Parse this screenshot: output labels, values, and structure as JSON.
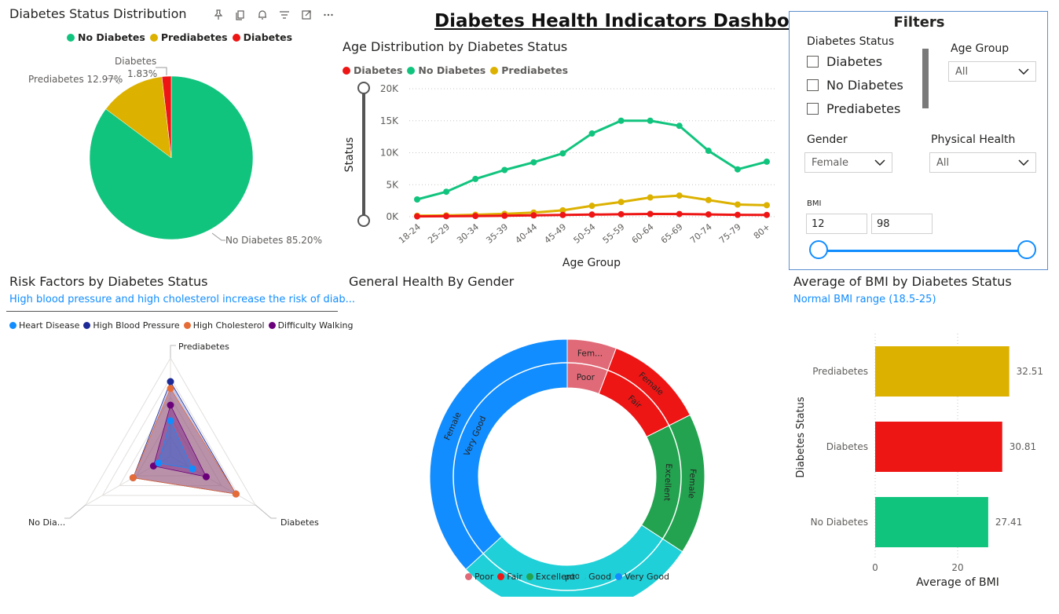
{
  "dashboard": {
    "title": "Diabetes Health Indicators Dashboard"
  },
  "colors": {
    "no_diabetes": "#11c47e",
    "prediabetes": "#dcb100",
    "diabetes": "#ee1515",
    "accent": "#118dff"
  },
  "visual_toolbar": {
    "icons": [
      "pin-icon",
      "copy-icon",
      "bell-icon",
      "filter-icon",
      "focus-mode-icon",
      "more-options-icon"
    ]
  },
  "pie_chart": {
    "title": "Diabetes Status Distribution",
    "legend": [
      "No Diabetes",
      "Prediabetes",
      "Diabetes"
    ],
    "labels": {
      "no_diabetes": "No Diabetes 85.20%",
      "prediabetes": "Prediabetes 12.97%",
      "diabetes_name": "Diabetes",
      "diabetes_pct": "1.83%"
    }
  },
  "line_chart": {
    "title": "Age Distribution by Diabetes Status",
    "legend": [
      "Diabetes",
      "No Diabetes",
      "Prediabetes"
    ],
    "ylabel": "Status",
    "xlabel": "Age Group"
  },
  "radar_chart": {
    "title": "Risk Factors by Diabetes Status",
    "subtitle": "High blood pressure and high cholesterol increase the risk of diab...",
    "legend": [
      "Heart Disease",
      "High Blood Pressure",
      "High Cholesterol",
      "Difficulty Walking"
    ],
    "axes": [
      "Prediabetes",
      "Diabetes",
      "No Dia..."
    ]
  },
  "donut_chart": {
    "title": "General Health By Gender",
    "legend": [
      "Poor",
      "Fair",
      "Excellent",
      "Good",
      "Very Good"
    ]
  },
  "bmi_chart": {
    "title": "Average of BMI by Diabetes Status",
    "subtitle": "Normal BMI range (18.5-25)",
    "ylabel": "Diabetes Status",
    "xlabel": "Average of BMI"
  },
  "filters": {
    "title": "Filters",
    "diabetes_status": {
      "label": "Diabetes Status",
      "options": [
        "Diabetes",
        "No Diabetes",
        "Prediabetes"
      ]
    },
    "age_group": {
      "label": "Age Group",
      "value": "All"
    },
    "gender": {
      "label": "Gender",
      "value": "Female"
    },
    "physical_health": {
      "label": "Physical Health",
      "value": "All"
    },
    "bmi": {
      "label": "BMI",
      "min": "12",
      "max": "98"
    }
  },
  "chart_data": [
    {
      "type": "pie",
      "title": "Diabetes Status Distribution",
      "categories": [
        "No Diabetes",
        "Prediabetes",
        "Diabetes"
      ],
      "values": [
        85.2,
        12.97,
        1.83
      ],
      "legend_position": "top"
    },
    {
      "type": "line",
      "title": "Age Distribution by Diabetes Status",
      "xlabel": "Age Group",
      "ylabel": "Status",
      "categories": [
        "18-24",
        "25-29",
        "30-34",
        "35-39",
        "40-44",
        "45-49",
        "50-54",
        "55-59",
        "60-64",
        "65-69",
        "70-74",
        "75-79",
        "80+"
      ],
      "yticks": [
        "0K",
        "5K",
        "10K",
        "15K",
        "20K"
      ],
      "ylim": [
        0,
        20000
      ],
      "series": [
        {
          "name": "Diabetes",
          "values": [
            50,
            80,
            110,
            150,
            210,
            270,
            330,
            390,
            430,
            420,
            360,
            290,
            280
          ]
        },
        {
          "name": "No Diabetes",
          "values": [
            2700,
            3900,
            5900,
            7300,
            8500,
            9900,
            13000,
            15000,
            15000,
            14200,
            10300,
            7400,
            8600
          ]
        },
        {
          "name": "Prediabetes",
          "values": [
            150,
            200,
            300,
            450,
            650,
            1000,
            1700,
            2300,
            3000,
            3300,
            2600,
            1900,
            1800
          ]
        }
      ],
      "grid": true,
      "legend_position": "top-left"
    },
    {
      "type": "radar",
      "title": "Risk Factors by Diabetes Status",
      "axes": [
        "Prediabetes",
        "Diabetes",
        "No Dia..."
      ],
      "series": [
        {
          "name": "Heart Disease",
          "values": [
            0.36,
            0.26,
            0.14
          ]
        },
        {
          "name": "High Blood Pressure",
          "values": [
            0.76,
            0.77,
            0.44
          ]
        },
        {
          "name": "High Cholesterol",
          "values": [
            0.69,
            0.77,
            0.44
          ]
        },
        {
          "name": "Difficulty Walking",
          "values": [
            0.52,
            0.42,
            0.2
          ]
        }
      ],
      "legend_position": "top"
    },
    {
      "type": "donut",
      "title": "General Health By Gender",
      "segments": [
        {
          "health": "Poor",
          "gender": "Female",
          "inner_label": "Poor",
          "outer_label": "Fem...",
          "value": 5.8
        },
        {
          "health": "Fair",
          "gender": "Female",
          "inner_label": "Fair",
          "outer_label": "Female",
          "value": 11.8
        },
        {
          "health": "Excellent",
          "gender": "Female",
          "inner_label": "Excellent",
          "outer_label": "Female",
          "value": 16.6
        },
        {
          "health": "Good",
          "gender": "Female",
          "inner_label": "Good",
          "outer_label": "Female",
          "value": 29.0
        },
        {
          "health": "Very Good",
          "gender": "Female",
          "inner_label": "Very Good",
          "outer_label": "Female",
          "value": 36.8
        }
      ],
      "legend_position": "bottom"
    },
    {
      "type": "bar",
      "orientation": "horizontal",
      "title": "Average of BMI by Diabetes Status",
      "categories": [
        "Prediabetes",
        "Diabetes",
        "No Diabetes"
      ],
      "values": [
        32.51,
        30.81,
        27.41
      ],
      "xlabel": "Average of BMI",
      "ylabel": "Diabetes Status",
      "xticks": [
        "0",
        "20"
      ],
      "xlim": [
        0,
        38
      ],
      "reference_band": [
        18.5,
        25
      ]
    }
  ]
}
